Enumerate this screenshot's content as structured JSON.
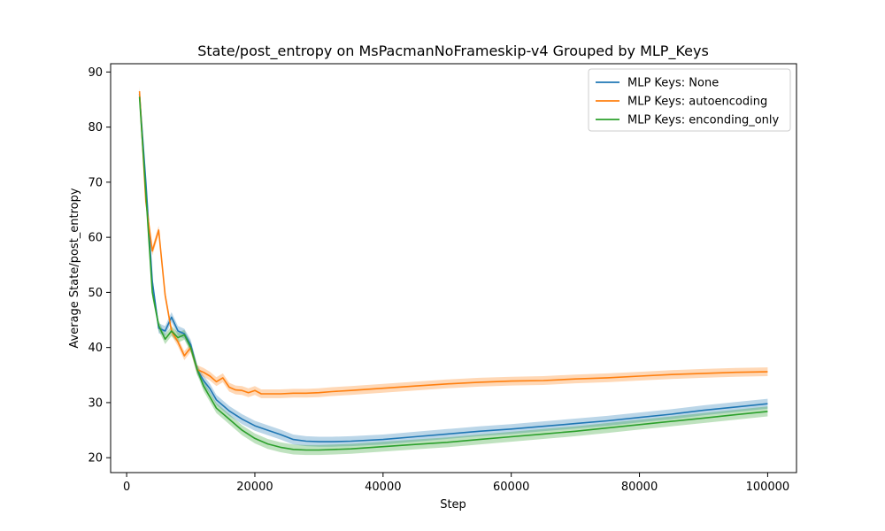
{
  "chart_data": {
    "type": "line",
    "title": "State/post_entropy on MsPacmanNoFrameskip-v4 Grouped by MLP_Keys",
    "xlabel": "Step",
    "ylabel": "Average State/post_entropy",
    "xlim": [
      -2500,
      104500
    ],
    "ylim": [
      17.3,
      91.5
    ],
    "x_ticks": [
      0,
      20000,
      40000,
      60000,
      80000,
      100000
    ],
    "y_ticks": [
      20,
      30,
      40,
      50,
      60,
      70,
      80,
      90
    ],
    "grid": false,
    "legend_position": "top-right",
    "series": [
      {
        "name": "MLP Keys: None",
        "color": "#1f77b4",
        "band": 0.9,
        "points": [
          [
            2000,
            86
          ],
          [
            3000,
            70
          ],
          [
            4000,
            52
          ],
          [
            5000,
            43.5
          ],
          [
            6000,
            43
          ],
          [
            7000,
            45.5
          ],
          [
            8000,
            43
          ],
          [
            9000,
            42.5
          ],
          [
            10000,
            40.5
          ],
          [
            11000,
            36
          ],
          [
            12000,
            34
          ],
          [
            13000,
            32.5
          ],
          [
            14000,
            30.5
          ],
          [
            16000,
            28.5
          ],
          [
            18000,
            27
          ],
          [
            20000,
            25.8
          ],
          [
            22000,
            25
          ],
          [
            24000,
            24.2
          ],
          [
            26000,
            23.3
          ],
          [
            28000,
            23
          ],
          [
            30000,
            22.9
          ],
          [
            32000,
            22.9
          ],
          [
            35000,
            23
          ],
          [
            40000,
            23.3
          ],
          [
            45000,
            23.8
          ],
          [
            50000,
            24.3
          ],
          [
            55000,
            24.8
          ],
          [
            60000,
            25.2
          ],
          [
            65000,
            25.7
          ],
          [
            70000,
            26.2
          ],
          [
            75000,
            26.7
          ],
          [
            80000,
            27.3
          ],
          [
            85000,
            27.9
          ],
          [
            90000,
            28.6
          ],
          [
            95000,
            29.2
          ],
          [
            100000,
            29.8
          ]
        ]
      },
      {
        "name": "MLP Keys: autoencoding",
        "color": "#ff7f0e",
        "band": 0.8,
        "points": [
          [
            2000,
            86.5
          ],
          [
            3000,
            66.5
          ],
          [
            4000,
            57.5
          ],
          [
            5000,
            61.3
          ],
          [
            6000,
            49.5
          ],
          [
            7000,
            43
          ],
          [
            8000,
            41
          ],
          [
            9000,
            38.5
          ],
          [
            10000,
            40
          ],
          [
            11000,
            36
          ],
          [
            12000,
            35.5
          ],
          [
            13000,
            34.8
          ],
          [
            14000,
            33.8
          ],
          [
            15000,
            34.5
          ],
          [
            16000,
            32.8
          ],
          [
            17000,
            32.3
          ],
          [
            18000,
            32.2
          ],
          [
            19000,
            31.8
          ],
          [
            20000,
            32.2
          ],
          [
            21000,
            31.6
          ],
          [
            22000,
            31.6
          ],
          [
            24000,
            31.6
          ],
          [
            26000,
            31.7
          ],
          [
            28000,
            31.7
          ],
          [
            30000,
            31.8
          ],
          [
            32000,
            32
          ],
          [
            35000,
            32.2
          ],
          [
            40000,
            32.6
          ],
          [
            45000,
            33
          ],
          [
            50000,
            33.4
          ],
          [
            55000,
            33.7
          ],
          [
            60000,
            33.9
          ],
          [
            65000,
            34
          ],
          [
            70000,
            34.3
          ],
          [
            75000,
            34.5
          ],
          [
            80000,
            34.8
          ],
          [
            85000,
            35.1
          ],
          [
            90000,
            35.3
          ],
          [
            95000,
            35.5
          ],
          [
            100000,
            35.6
          ]
        ]
      },
      {
        "name": "MLP Keys: enconding_only",
        "color": "#2ca02c",
        "band": 0.9,
        "points": [
          [
            2000,
            85.5
          ],
          [
            3000,
            68
          ],
          [
            4000,
            50
          ],
          [
            5000,
            44
          ],
          [
            6000,
            41.5
          ],
          [
            7000,
            43
          ],
          [
            8000,
            41.8
          ],
          [
            9000,
            42.3
          ],
          [
            10000,
            40
          ],
          [
            11000,
            36
          ],
          [
            12000,
            33
          ],
          [
            13000,
            31
          ],
          [
            14000,
            29
          ],
          [
            16000,
            27
          ],
          [
            18000,
            25
          ],
          [
            20000,
            23.5
          ],
          [
            22000,
            22.5
          ],
          [
            24000,
            21.9
          ],
          [
            26000,
            21.5
          ],
          [
            28000,
            21.4
          ],
          [
            30000,
            21.4
          ],
          [
            35000,
            21.6
          ],
          [
            40000,
            22
          ],
          [
            45000,
            22.4
          ],
          [
            50000,
            22.8
          ],
          [
            55000,
            23.3
          ],
          [
            60000,
            23.8
          ],
          [
            65000,
            24.3
          ],
          [
            70000,
            24.8
          ],
          [
            75000,
            25.4
          ],
          [
            80000,
            26
          ],
          [
            85000,
            26.6
          ],
          [
            90000,
            27.2
          ],
          [
            95000,
            27.8
          ],
          [
            100000,
            28.4
          ]
        ]
      }
    ]
  }
}
